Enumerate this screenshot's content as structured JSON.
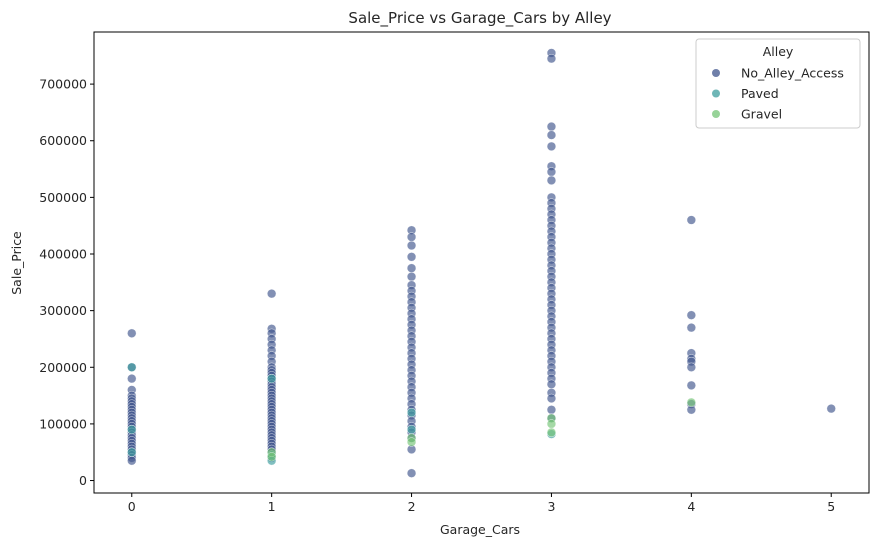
{
  "chart_data": {
    "type": "scatter",
    "title": "Sale_Price vs Garage_Cars by Alley",
    "xlabel": "Garage_Cars",
    "ylabel": "Sale_Price",
    "xlim": [
      -0.27,
      5.27
    ],
    "ylim": [
      -22000,
      792000
    ],
    "xticks": [
      0,
      1,
      2,
      3,
      4,
      5
    ],
    "xtick_labels": [
      "0",
      "1",
      "2",
      "3",
      "4",
      "5"
    ],
    "yticks": [
      0,
      100000,
      200000,
      300000,
      400000,
      500000,
      600000,
      700000
    ],
    "ytick_labels": [
      "0",
      "100000",
      "200000",
      "300000",
      "400000",
      "500000",
      "600000",
      "700000"
    ],
    "grid": false,
    "legend": {
      "title": "Alley",
      "placement": "top-right",
      "entries": [
        "No_Alley_Access",
        "Paved",
        "Gravel"
      ]
    },
    "series": [
      {
        "name": "No_Alley_Access",
        "color": "#3f548c",
        "points": [
          [
            0,
            260000
          ],
          [
            0,
            200000
          ],
          [
            0,
            180000
          ],
          [
            0,
            160000
          ],
          [
            0,
            150000
          ],
          [
            0,
            145000
          ],
          [
            0,
            140000
          ],
          [
            0,
            135000
          ],
          [
            0,
            130000
          ],
          [
            0,
            125000
          ],
          [
            0,
            120000
          ],
          [
            0,
            115000
          ],
          [
            0,
            110000
          ],
          [
            0,
            105000
          ],
          [
            0,
            100000
          ],
          [
            0,
            95000
          ],
          [
            0,
            90000
          ],
          [
            0,
            85000
          ],
          [
            0,
            80000
          ],
          [
            0,
            75000
          ],
          [
            0,
            70000
          ],
          [
            0,
            65000
          ],
          [
            0,
            60000
          ],
          [
            0,
            55000
          ],
          [
            0,
            50000
          ],
          [
            0,
            45000
          ],
          [
            0,
            40000
          ],
          [
            0,
            35000
          ],
          [
            1,
            330000
          ],
          [
            1,
            268000
          ],
          [
            1,
            260000
          ],
          [
            1,
            250000
          ],
          [
            1,
            240000
          ],
          [
            1,
            230000
          ],
          [
            1,
            220000
          ],
          [
            1,
            210000
          ],
          [
            1,
            200000
          ],
          [
            1,
            195000
          ],
          [
            1,
            190000
          ],
          [
            1,
            185000
          ],
          [
            1,
            180000
          ],
          [
            1,
            175000
          ],
          [
            1,
            170000
          ],
          [
            1,
            165000
          ],
          [
            1,
            160000
          ],
          [
            1,
            155000
          ],
          [
            1,
            150000
          ],
          [
            1,
            145000
          ],
          [
            1,
            140000
          ],
          [
            1,
            135000
          ],
          [
            1,
            130000
          ],
          [
            1,
            125000
          ],
          [
            1,
            120000
          ],
          [
            1,
            115000
          ],
          [
            1,
            110000
          ],
          [
            1,
            105000
          ],
          [
            1,
            100000
          ],
          [
            1,
            95000
          ],
          [
            1,
            90000
          ],
          [
            1,
            85000
          ],
          [
            1,
            80000
          ],
          [
            1,
            75000
          ],
          [
            1,
            70000
          ],
          [
            1,
            65000
          ],
          [
            1,
            60000
          ],
          [
            1,
            55000
          ],
          [
            1,
            50000
          ],
          [
            1,
            40000
          ],
          [
            2,
            442000
          ],
          [
            2,
            430000
          ],
          [
            2,
            415000
          ],
          [
            2,
            395000
          ],
          [
            2,
            375000
          ],
          [
            2,
            360000
          ],
          [
            2,
            345000
          ],
          [
            2,
            335000
          ],
          [
            2,
            325000
          ],
          [
            2,
            315000
          ],
          [
            2,
            305000
          ],
          [
            2,
            295000
          ],
          [
            2,
            285000
          ],
          [
            2,
            275000
          ],
          [
            2,
            265000
          ],
          [
            2,
            255000
          ],
          [
            2,
            245000
          ],
          [
            2,
            235000
          ],
          [
            2,
            225000
          ],
          [
            2,
            215000
          ],
          [
            2,
            205000
          ],
          [
            2,
            195000
          ],
          [
            2,
            185000
          ],
          [
            2,
            175000
          ],
          [
            2,
            165000
          ],
          [
            2,
            155000
          ],
          [
            2,
            145000
          ],
          [
            2,
            135000
          ],
          [
            2,
            125000
          ],
          [
            2,
            115000
          ],
          [
            2,
            105000
          ],
          [
            2,
            95000
          ],
          [
            2,
            85000
          ],
          [
            2,
            75000
          ],
          [
            2,
            55000
          ],
          [
            2,
            13000
          ],
          [
            3,
            755000
          ],
          [
            3,
            745000
          ],
          [
            3,
            625000
          ],
          [
            3,
            610000
          ],
          [
            3,
            590000
          ],
          [
            3,
            555000
          ],
          [
            3,
            545000
          ],
          [
            3,
            530000
          ],
          [
            3,
            500000
          ],
          [
            3,
            490000
          ],
          [
            3,
            480000
          ],
          [
            3,
            470000
          ],
          [
            3,
            460000
          ],
          [
            3,
            450000
          ],
          [
            3,
            440000
          ],
          [
            3,
            430000
          ],
          [
            3,
            420000
          ],
          [
            3,
            410000
          ],
          [
            3,
            400000
          ],
          [
            3,
            390000
          ],
          [
            3,
            380000
          ],
          [
            3,
            370000
          ],
          [
            3,
            360000
          ],
          [
            3,
            350000
          ],
          [
            3,
            340000
          ],
          [
            3,
            330000
          ],
          [
            3,
            320000
          ],
          [
            3,
            310000
          ],
          [
            3,
            300000
          ],
          [
            3,
            290000
          ],
          [
            3,
            280000
          ],
          [
            3,
            270000
          ],
          [
            3,
            260000
          ],
          [
            3,
            250000
          ],
          [
            3,
            240000
          ],
          [
            3,
            230000
          ],
          [
            3,
            220000
          ],
          [
            3,
            210000
          ],
          [
            3,
            200000
          ],
          [
            3,
            190000
          ],
          [
            3,
            180000
          ],
          [
            3,
            170000
          ],
          [
            3,
            155000
          ],
          [
            3,
            145000
          ],
          [
            3,
            125000
          ],
          [
            3,
            110000
          ],
          [
            4,
            460000
          ],
          [
            4,
            292000
          ],
          [
            4,
            270000
          ],
          [
            4,
            225000
          ],
          [
            4,
            215000
          ],
          [
            4,
            210000
          ],
          [
            4,
            200000
          ],
          [
            4,
            168000
          ],
          [
            4,
            135000
          ],
          [
            4,
            125000
          ],
          [
            5,
            127000
          ]
        ]
      },
      {
        "name": "Paved",
        "color": "#3d9e9e",
        "points": [
          [
            0,
            200000
          ],
          [
            0,
            90000
          ],
          [
            0,
            50000
          ],
          [
            1,
            180000
          ],
          [
            1,
            45000
          ],
          [
            1,
            35000
          ],
          [
            2,
            120000
          ],
          [
            2,
            90000
          ],
          [
            3,
            82000
          ]
        ]
      },
      {
        "name": "Gravel",
        "color": "#74c476",
        "points": [
          [
            1,
            50000
          ],
          [
            1,
            42000
          ],
          [
            2,
            75000
          ],
          [
            2,
            68000
          ],
          [
            3,
            110000
          ],
          [
            3,
            100000
          ],
          [
            3,
            85000
          ],
          [
            4,
            138000
          ]
        ]
      }
    ]
  }
}
